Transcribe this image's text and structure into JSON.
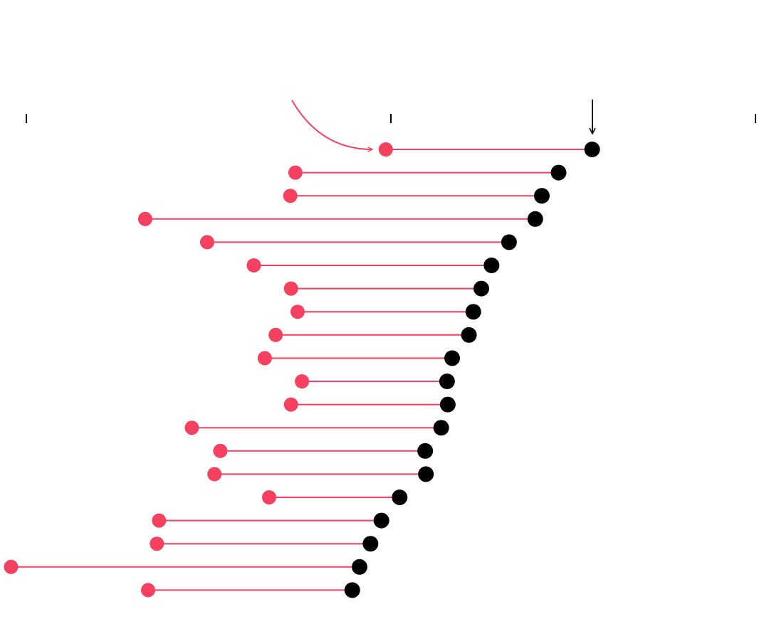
{
  "chart_data": {
    "type": "dumbbell",
    "categories": [
      null,
      null,
      null,
      null,
      null,
      null,
      null,
      null,
      null,
      null,
      null,
      null,
      null,
      null,
      null,
      null,
      null,
      null,
      null,
      null
    ],
    "series": [
      {
        "color": "#f5415f",
        "values": [
          49.3,
          36.9,
          36.2,
          16.3,
          24.8,
          31.2,
          36.3,
          37.2,
          34.2,
          32.7,
          37.8,
          36.3,
          22.7,
          26.6,
          25.8,
          33.3,
          18.2,
          17.9,
          -2.1,
          16.7
        ]
      },
      {
        "color": "#000000",
        "values": [
          77.6,
          73.0,
          70.7,
          69.8,
          66.2,
          63.8,
          62.4,
          61.3,
          60.7,
          58.4,
          57.7,
          57.8,
          56.9,
          54.7,
          54.8,
          51.2,
          48.7,
          47.2,
          45.7,
          44.7
        ]
      }
    ],
    "xlim": [
      0,
      100
    ],
    "xticks": [
      0,
      50,
      100
    ]
  }
}
